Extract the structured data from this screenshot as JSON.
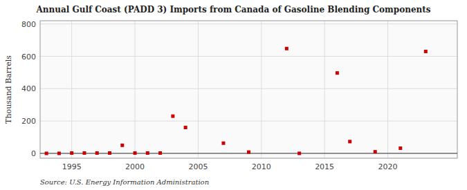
{
  "chart_data": {
    "type": "scatter",
    "title": "Annual Gulf Coast (PADD 3) Imports from Canada of Gasoline Blending Components",
    "y_label": "Thousand Barrels",
    "annotations": [
      "Source: U.S. Energy Information Administration"
    ],
    "x": [
      1993,
      1994,
      1995,
      1996,
      1997,
      1998,
      1999,
      2000,
      2001,
      2002,
      2003,
      2004,
      2007,
      2009,
      2012,
      2013,
      2016,
      2017,
      2019,
      2021,
      2023
    ],
    "values": [
      0,
      0,
      2,
      2,
      2,
      2,
      50,
      2,
      2,
      2,
      230,
      160,
      63,
      8,
      648,
      0,
      497,
      73,
      10,
      32,
      630
    ],
    "color": "#cc0000",
    "marker": "square",
    "xlim": [
      1992.5,
      2025.5
    ],
    "ylim": [
      -30,
      820
    ],
    "xticks": [
      1995,
      2000,
      2005,
      2010,
      2015,
      2020
    ],
    "yticks": [
      0,
      200,
      400,
      600,
      800
    ],
    "grid": true
  }
}
